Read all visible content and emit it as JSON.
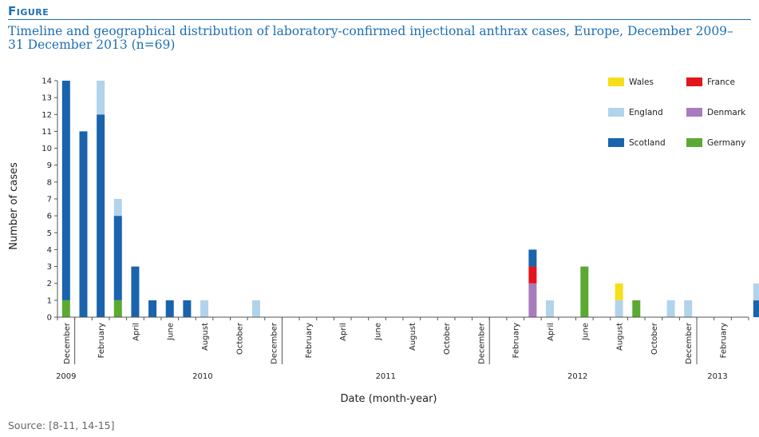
{
  "figure_label": "Figure",
  "title": "Timeline and geographical distribution of laboratory-confirmed injectional anthrax cases, Europe, December 2009–31 December 2013 (n=69)",
  "source": "Source: [8-11, 14-15]",
  "chart_data": {
    "type": "bar",
    "stacked": true,
    "xlabel": "Date (month-year)",
    "ylabel": "Number of cases",
    "ylim": [
      0,
      14
    ],
    "yticks": [
      0,
      1,
      2,
      3,
      4,
      5,
      6,
      7,
      8,
      9,
      10,
      11,
      12,
      13,
      14
    ],
    "grid": false,
    "legend_position": "top-right",
    "categories": [
      "Dec 2009",
      "Jan 2010",
      "Feb 2010",
      "Mar 2010",
      "Apr 2010",
      "May 2010",
      "Jun 2010",
      "Jul 2010",
      "Aug 2010",
      "Sep 2010",
      "Oct 2010",
      "Nov 2010",
      "Dec 2010",
      "Jan 2011",
      "Feb 2011",
      "Mar 2011",
      "Apr 2011",
      "May 2011",
      "Jun 2011",
      "Jul 2011",
      "Aug 2011",
      "Sep 2011",
      "Oct 2011",
      "Nov 2011",
      "Dec 2011",
      "Jan 2012",
      "Feb 2012",
      "Mar 2012",
      "Apr 2012",
      "May 2012",
      "Jun 2012",
      "Jul 2012",
      "Aug 2012",
      "Sep 2012",
      "Oct 2012",
      "Nov 2012",
      "Dec 2012",
      "Jan 2013",
      "Feb 2013",
      "Mar 2013",
      "Apr 2013",
      "May 2013"
    ],
    "month_tick_labels": [
      "December",
      "February",
      "April",
      "June",
      "August",
      "October",
      "December",
      "February",
      "April",
      "June",
      "August",
      "October",
      "December",
      "February",
      "April",
      "June",
      "August",
      "October",
      "December",
      "February"
    ],
    "year_labels": [
      "2009",
      "2010",
      "2011",
      "2012",
      "2013"
    ],
    "series": [
      {
        "name": "Germany",
        "color": "#5aaa32",
        "values": [
          1,
          0,
          0,
          1,
          0,
          0,
          0,
          0,
          0,
          0,
          0,
          0,
          0,
          0,
          0,
          0,
          0,
          0,
          0,
          0,
          0,
          0,
          0,
          0,
          0,
          0,
          0,
          0,
          0,
          0,
          3,
          0,
          0,
          1,
          0,
          0,
          0,
          0,
          0,
          0,
          0,
          0
        ]
      },
      {
        "name": "Denmark",
        "color": "#a87cbc",
        "values": [
          0,
          0,
          0,
          0,
          0,
          0,
          0,
          0,
          0,
          0,
          0,
          0,
          0,
          0,
          0,
          0,
          0,
          0,
          0,
          0,
          0,
          0,
          0,
          0,
          0,
          0,
          0,
          2,
          0,
          0,
          0,
          0,
          0,
          0,
          0,
          0,
          0,
          0,
          0,
          0,
          0,
          0
        ]
      },
      {
        "name": "France",
        "color": "#e3141b",
        "values": [
          0,
          0,
          0,
          0,
          0,
          0,
          0,
          0,
          0,
          0,
          0,
          0,
          0,
          0,
          0,
          0,
          0,
          0,
          0,
          0,
          0,
          0,
          0,
          0,
          0,
          0,
          0,
          1,
          0,
          0,
          0,
          0,
          0,
          0,
          0,
          0,
          0,
          0,
          0,
          0,
          0,
          0
        ]
      },
      {
        "name": "Scotland",
        "color": "#1a63ad",
        "values": [
          13,
          11,
          12,
          5,
          3,
          1,
          1,
          1,
          0,
          0,
          0,
          0,
          0,
          0,
          0,
          0,
          0,
          0,
          0,
          0,
          0,
          0,
          0,
          0,
          0,
          0,
          0,
          1,
          0,
          0,
          0,
          0,
          0,
          0,
          0,
          0,
          0,
          0,
          0,
          0,
          1,
          0
        ]
      },
      {
        "name": "England",
        "color": "#b2d3ec",
        "values": [
          0,
          0,
          2,
          1,
          0,
          0,
          0,
          0,
          1,
          0,
          0,
          1,
          0,
          0,
          0,
          0,
          0,
          0,
          0,
          0,
          0,
          0,
          0,
          0,
          0,
          0,
          0,
          0,
          1,
          0,
          0,
          0,
          1,
          0,
          0,
          1,
          1,
          0,
          0,
          0,
          1,
          0
        ]
      },
      {
        "name": "Wales",
        "color": "#f5df1a",
        "values": [
          0,
          0,
          0,
          0,
          0,
          0,
          0,
          0,
          0,
          0,
          0,
          0,
          0,
          0,
          0,
          0,
          0,
          0,
          0,
          0,
          0,
          0,
          0,
          0,
          0,
          0,
          0,
          0,
          0,
          0,
          0,
          0,
          1,
          0,
          0,
          0,
          0,
          0,
          0,
          0,
          0,
          0
        ]
      }
    ],
    "legend_order": [
      "Wales",
      "France",
      "England",
      "Denmark",
      "Scotland",
      "Germany"
    ]
  }
}
